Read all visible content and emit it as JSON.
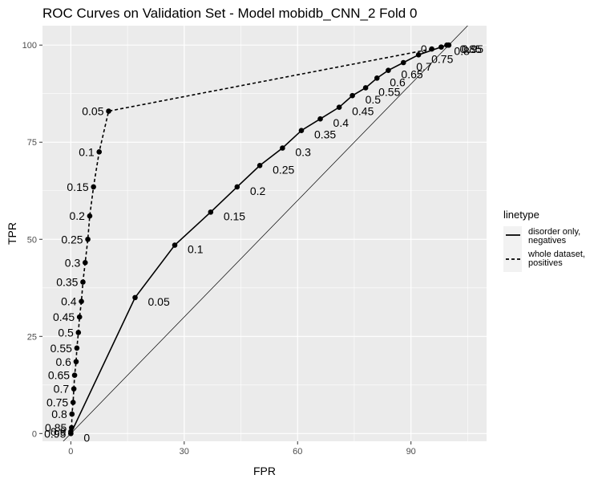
{
  "chart_data": {
    "type": "line",
    "title": "ROC Curves on Validation Set - Model mobidb_CNN_2 Fold 0",
    "xlabel": "FPR",
    "ylabel": "TPR",
    "xlim": [
      -7.5,
      110
    ],
    "ylim": [
      -2,
      105
    ],
    "x_ticks": [
      0,
      30,
      60,
      90
    ],
    "y_ticks": [
      0,
      25,
      50,
      75,
      100
    ],
    "grid": true,
    "legend": {
      "title": "linetype",
      "position": "right",
      "entries": [
        {
          "label_lines": [
            "disorder only,",
            "negatives"
          ],
          "dash": "solid"
        },
        {
          "label_lines": [
            "whole dataset,",
            "positives"
          ],
          "dash": "dotted"
        }
      ]
    },
    "reference_line": {
      "from": [
        -10,
        -10
      ],
      "to": [
        110,
        110
      ]
    },
    "series": [
      {
        "dash": "solid",
        "points": [
          {
            "x": 0,
            "y": 0,
            "label": "0"
          },
          {
            "x": 17,
            "y": 35,
            "label": "0.05"
          },
          {
            "x": 27.5,
            "y": 48.5,
            "label": "0.1"
          },
          {
            "x": 37,
            "y": 57,
            "label": "0.15"
          },
          {
            "x": 44,
            "y": 63.5,
            "label": "0.2"
          },
          {
            "x": 50,
            "y": 69,
            "label": "0.25"
          },
          {
            "x": 56,
            "y": 73.5,
            "label": "0.3"
          },
          {
            "x": 61,
            "y": 78,
            "label": "0.35"
          },
          {
            "x": 66,
            "y": 81,
            "label": "0.4"
          },
          {
            "x": 71,
            "y": 84,
            "label": "0.45"
          },
          {
            "x": 74.5,
            "y": 87,
            "label": "0.5"
          },
          {
            "x": 78,
            "y": 89,
            "label": "0.55"
          },
          {
            "x": 81,
            "y": 91.5,
            "label": "0.6"
          },
          {
            "x": 84,
            "y": 93.5,
            "label": "0.65"
          },
          {
            "x": 88,
            "y": 95.5,
            "label": "0.7"
          },
          {
            "x": 92,
            "y": 97.5,
            "label": "0.75"
          },
          {
            "x": 98,
            "y": 99.5,
            "label": "0.8"
          },
          {
            "x": 99.5,
            "y": 100,
            "label": "0.85"
          },
          {
            "x": 100,
            "y": 100,
            "label": "0.9"
          },
          {
            "x": 100,
            "y": 100,
            "label": "0.95"
          }
        ]
      },
      {
        "dash": "dotted",
        "points": [
          {
            "x": 0,
            "y": 0,
            "label": "0.95"
          },
          {
            "x": 0,
            "y": 0.5,
            "label": "0.9"
          },
          {
            "x": 0.2,
            "y": 1.5,
            "label": "0.85"
          },
          {
            "x": 0.3,
            "y": 5,
            "label": "0.8"
          },
          {
            "x": 0.6,
            "y": 8,
            "label": "0.75"
          },
          {
            "x": 0.8,
            "y": 11.5,
            "label": "0.7"
          },
          {
            "x": 1,
            "y": 15,
            "label": "0.65"
          },
          {
            "x": 1.4,
            "y": 18.5,
            "label": "0.6"
          },
          {
            "x": 1.6,
            "y": 22,
            "label": "0.55"
          },
          {
            "x": 2,
            "y": 26,
            "label": "0.5"
          },
          {
            "x": 2.3,
            "y": 30,
            "label": "0.45"
          },
          {
            "x": 2.8,
            "y": 34,
            "label": "0.4"
          },
          {
            "x": 3.2,
            "y": 39,
            "label": "0.35"
          },
          {
            "x": 3.8,
            "y": 44,
            "label": "0.3"
          },
          {
            "x": 4.5,
            "y": 50,
            "label": "0.25"
          },
          {
            "x": 5,
            "y": 56,
            "label": "0.2"
          },
          {
            "x": 6,
            "y": 63.5,
            "label": "0.15"
          },
          {
            "x": 7.5,
            "y": 72.5,
            "label": "0.1"
          },
          {
            "x": 10,
            "y": 83,
            "label": "0.05"
          },
          {
            "x": 95.5,
            "y": 99,
            "label": "0"
          }
        ]
      }
    ]
  }
}
